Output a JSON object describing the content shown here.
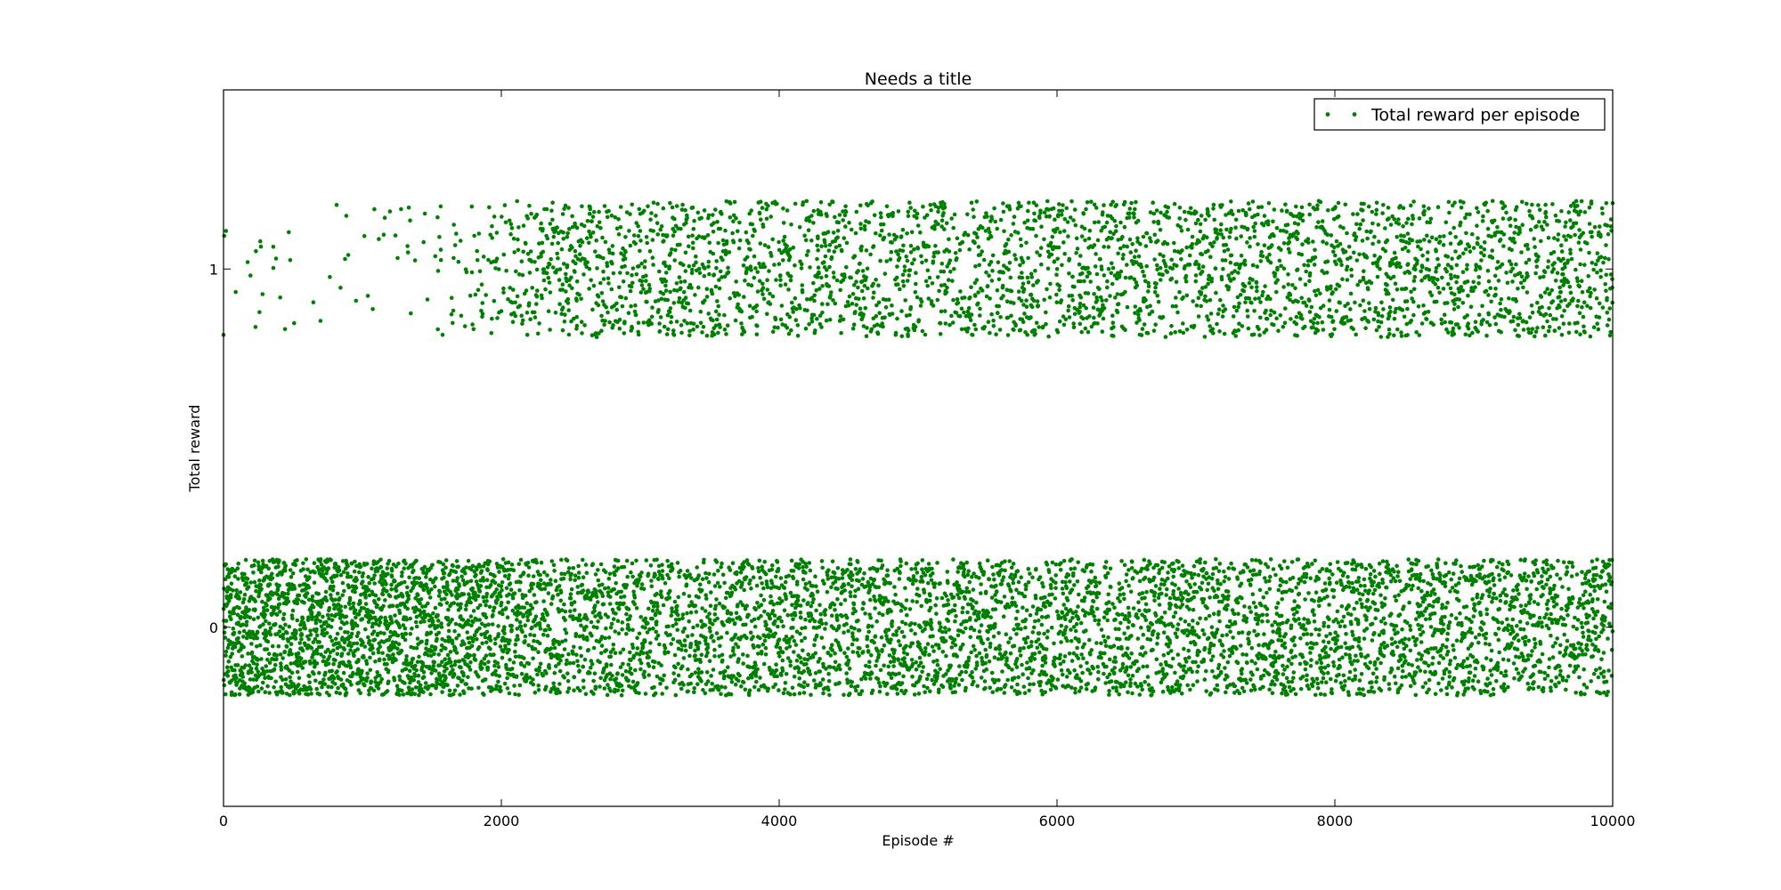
{
  "chart_data": {
    "type": "scatter",
    "title": "Needs a title",
    "xlabel": "Episode #",
    "ylabel": "Total reward",
    "xlim": [
      0,
      10000
    ],
    "ylim": [
      -0.5,
      1.5
    ],
    "xticks": [
      "0",
      "2000",
      "4000",
      "6000",
      "8000",
      "10000"
    ],
    "yticks": [
      "0",
      "1"
    ],
    "grid": false,
    "legend": "top-right",
    "series": [
      {
        "name": "Total reward per episode",
        "color": "#008000",
        "marker": "dot",
        "n_points": 10000,
        "bands": [
          {
            "center": 0,
            "half_width": 0.19
          },
          {
            "center": 1,
            "half_width": 0.19
          }
        ],
        "band_1_fraction_by_episode": [
          {
            "x": 0,
            "fraction": 0.05
          },
          {
            "x": 1000,
            "fraction": 0.02
          },
          {
            "x": 1500,
            "fraction": 0.05
          },
          {
            "x": 2000,
            "fraction": 0.2
          },
          {
            "x": 2300,
            "fraction": 0.38
          },
          {
            "x": 3000,
            "fraction": 0.4
          },
          {
            "x": 10000,
            "fraction": 0.41
          }
        ]
      }
    ]
  }
}
